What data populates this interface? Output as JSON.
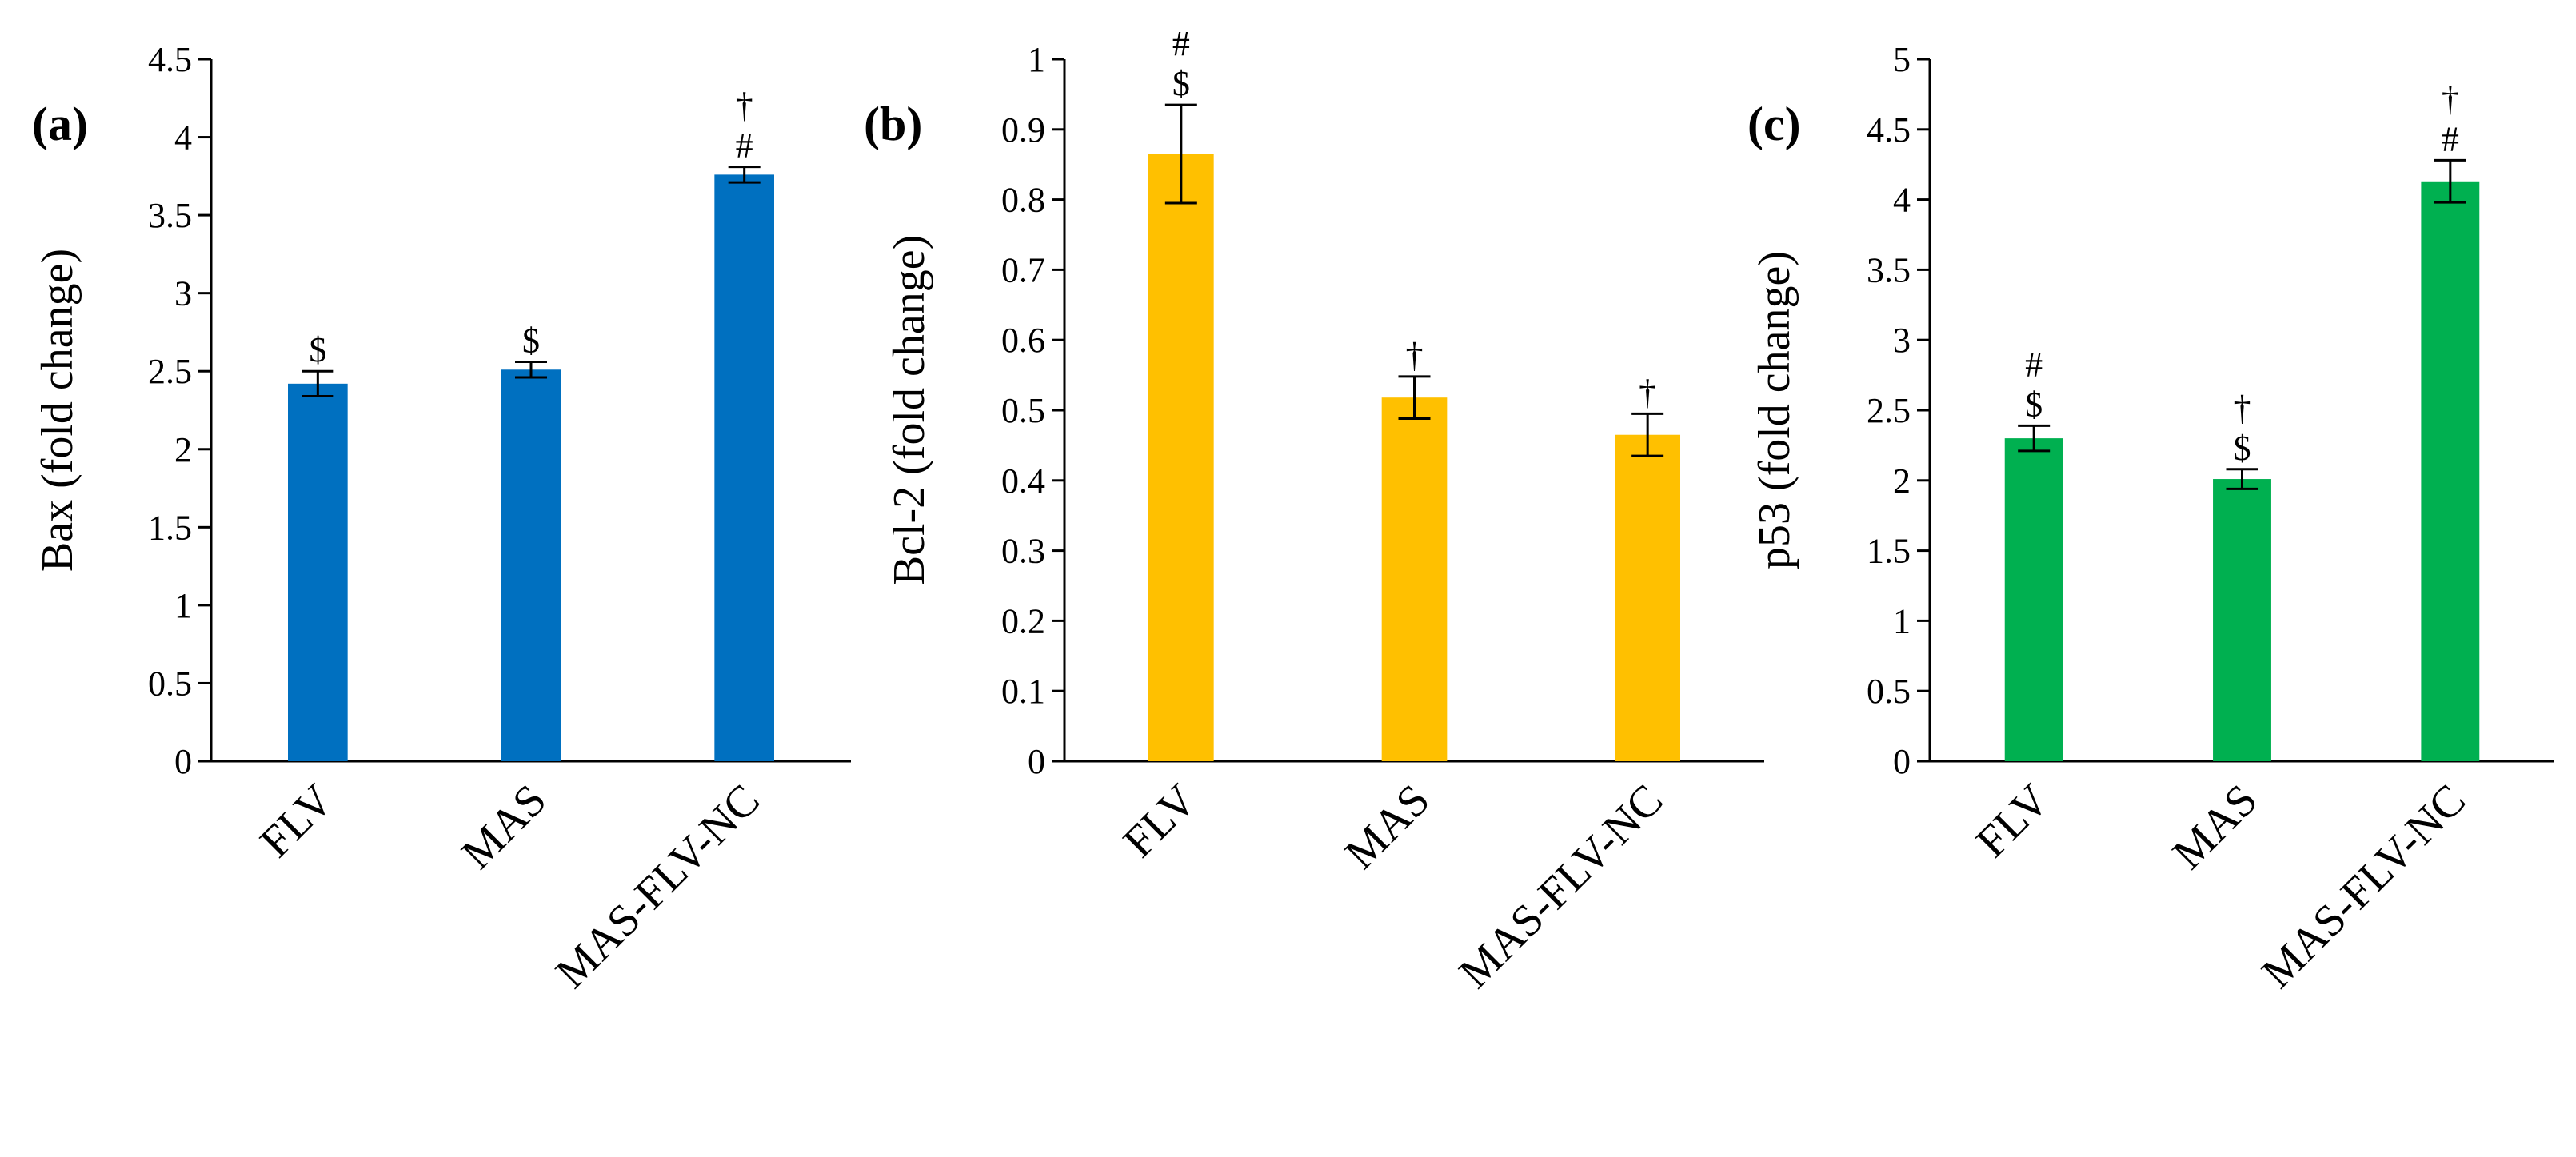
{
  "chart_data": [
    {
      "type": "bar",
      "panel_label": "(a)",
      "ylabel": "Bax (fold change)",
      "categories": [
        "FLV",
        "MAS",
        "MAS-FLV-NC"
      ],
      "values": [
        2.42,
        2.51,
        3.76
      ],
      "errors": [
        0.08,
        0.05,
        0.05
      ],
      "annotations": [
        [
          "$"
        ],
        [
          "$"
        ],
        [
          "#",
          "†"
        ]
      ],
      "ylim": [
        0,
        4.5
      ],
      "yticks": [
        "0",
        "0.5",
        "1",
        "1.5",
        "2",
        "2.5",
        "3",
        "3.5",
        "4",
        "4.5"
      ],
      "color": "#0070c0",
      "grid": false
    },
    {
      "type": "bar",
      "panel_label": "(b)",
      "ylabel": "Bcl-2 (fold change)",
      "categories": [
        "FLV",
        "MAS",
        "MAS-FLV-NC"
      ],
      "values": [
        0.865,
        0.518,
        0.465
      ],
      "errors": [
        0.07,
        0.03,
        0.03
      ],
      "annotations": [
        [
          "$",
          "#"
        ],
        [
          "†"
        ],
        [
          "†"
        ]
      ],
      "ylim": [
        0,
        1
      ],
      "yticks": [
        "0",
        "0.1",
        "0.2",
        "0.3",
        "0.4",
        "0.5",
        "0.6",
        "0.7",
        "0.8",
        "0.9",
        "1"
      ],
      "color": "#ffc000",
      "grid": false
    },
    {
      "type": "bar",
      "panel_label": "(c)",
      "ylabel": "p53 (fold change)",
      "categories": [
        "FLV",
        "MAS",
        "MAS-FLV-NC"
      ],
      "values": [
        2.3,
        2.01,
        4.13
      ],
      "errors": [
        0.09,
        0.07,
        0.15
      ],
      "annotations": [
        [
          "$",
          "#"
        ],
        [
          "$",
          "†"
        ],
        [
          "#",
          "†"
        ]
      ],
      "ylim": [
        0,
        5
      ],
      "yticks": [
        "0",
        "0.5",
        "1",
        "1.5",
        "2",
        "2.5",
        "3",
        "3.5",
        "4",
        "4.5",
        "5"
      ],
      "color": "#00b050",
      "grid": false
    }
  ]
}
